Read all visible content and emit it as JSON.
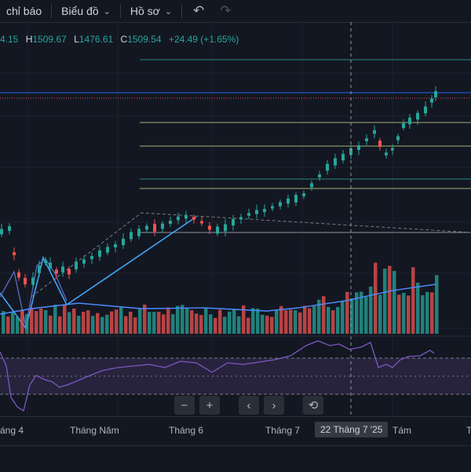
{
  "toolbar": {
    "indicators_label": "chỉ báo",
    "chart_label": "Biểu đồ",
    "profile_label": "Hồ sơ",
    "undo_icon": "undo-icon",
    "redo_icon": "redo-icon"
  },
  "ohlc": {
    "open_value": "4.15",
    "high_key": "H",
    "high_value": "1509.67",
    "low_key": "L",
    "low_value": "1476.61",
    "close_key": "C",
    "close_value": "1509.54",
    "change": "+24.49 (+1.65%)"
  },
  "x_axis": {
    "labels": [
      "áng 4",
      "Tháng Năm",
      "Tháng 6",
      "Tháng 7",
      "Tám",
      "T"
    ],
    "crosshair_label": "22 Tháng 7 '25"
  },
  "navigation": {
    "zoom_out": "−",
    "zoom_in": "+",
    "scroll_left": "‹",
    "scroll_right": "›",
    "reset": "⟲"
  },
  "colors": {
    "background": "#131722",
    "up": "#26a69a",
    "down": "#ef5350",
    "ma_line": "#2962ff",
    "rsi_line": "#7e57c2",
    "trend_line": "#42a5f5"
  }
}
